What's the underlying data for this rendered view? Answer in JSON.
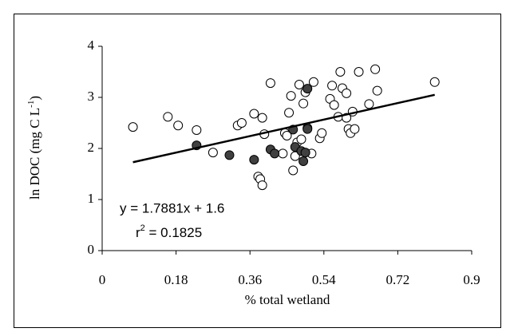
{
  "chart_data": {
    "type": "scatter",
    "xlabel": "% total wetland",
    "ylabel": {
      "text": "ln DOC (mg C L",
      "sup": "-1",
      "end": ")"
    },
    "equation": "y = 1.7881x + 1.6",
    "r2": {
      "text": "r",
      "sup": "2",
      "end": " = 0.1825"
    },
    "xlim": [
      0,
      0.9
    ],
    "ylim": [
      0,
      4
    ],
    "xticks": [
      0,
      0.18,
      0.36,
      0.54,
      0.72,
      0.9
    ],
    "yticks": [
      0,
      1,
      2,
      3,
      4
    ],
    "series": [
      {
        "marker": "open",
        "color": "#000000",
        "x": [
          0.075,
          0.16,
          0.185,
          0.23,
          0.27,
          0.33,
          0.34,
          0.37,
          0.38,
          0.385,
          0.39,
          0.39,
          0.395,
          0.41,
          0.44,
          0.445,
          0.45,
          0.455,
          0.46,
          0.465,
          0.47,
          0.475,
          0.48,
          0.485,
          0.49,
          0.495,
          0.5,
          0.51,
          0.515,
          0.53,
          0.535,
          0.555,
          0.56,
          0.565,
          0.575,
          0.58,
          0.585,
          0.595,
          0.595,
          0.6,
          0.605,
          0.61,
          0.615,
          0.625,
          0.65,
          0.665,
          0.67,
          0.81
        ],
        "values": [
          2.42,
          2.62,
          2.45,
          2.36,
          1.92,
          2.45,
          2.5,
          2.68,
          1.45,
          1.4,
          1.28,
          2.6,
          2.28,
          3.28,
          1.9,
          2.3,
          2.25,
          2.7,
          3.03,
          1.57,
          1.85,
          2.12,
          3.25,
          2.18,
          2.88,
          3.1,
          2.4,
          1.9,
          3.3,
          2.2,
          2.3,
          2.97,
          3.23,
          2.85,
          2.62,
          3.5,
          3.18,
          3.08,
          2.6,
          2.38,
          2.3,
          2.72,
          2.38,
          3.5,
          2.87,
          3.55,
          3.13,
          3.3
        ]
      },
      {
        "marker": "filled",
        "color": "#404040",
        "x": [
          0.23,
          0.31,
          0.37,
          0.41,
          0.42,
          0.465,
          0.47,
          0.485,
          0.49,
          0.495,
          0.5,
          0.5
        ],
        "values": [
          2.06,
          1.87,
          1.78,
          1.98,
          1.9,
          2.37,
          2.03,
          1.95,
          1.75,
          1.92,
          2.38,
          3.17
        ]
      },
      {
        "marker": "line",
        "color": "#000000",
        "x": [
          0.075,
          0.81
        ],
        "values": [
          1.73,
          3.05
        ]
      }
    ]
  }
}
